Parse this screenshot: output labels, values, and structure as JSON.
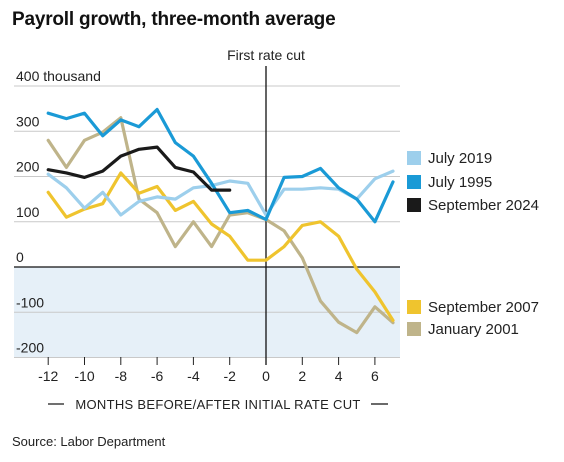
{
  "title": "Payroll growth, three-month average",
  "source": "Source: Labor Department",
  "chart_data": {
    "type": "line",
    "title": "Payroll growth, three-month average",
    "xlabel": "MONTHS BEFORE/AFTER INITIAL RATE CUT",
    "ylabel_unit": "thousand",
    "xlim": [
      -12,
      7
    ],
    "ylim": [
      -200,
      400
    ],
    "x_ticks": [
      -12,
      -10,
      -8,
      -6,
      -4,
      -2,
      0,
      2,
      4,
      6
    ],
    "y_ticks": [
      {
        "value": 400,
        "label": "400 thousand"
      },
      {
        "value": 300,
        "label": "300"
      },
      {
        "value": 200,
        "label": "200"
      },
      {
        "value": 100,
        "label": "100"
      },
      {
        "value": 0,
        "label": "0"
      },
      {
        "value": -100,
        "label": "-100"
      },
      {
        "value": -200,
        "label": "-200"
      }
    ],
    "annotation": "First rate cut",
    "annotation_x": 0,
    "negative_shading": true,
    "series": [
      {
        "name": "July 2019",
        "color": "#9dcfec",
        "x": [
          -12,
          -11,
          -10,
          -9,
          -8,
          -7,
          -6,
          -5,
          -4,
          -3,
          -2,
          -1,
          0,
          1,
          2,
          3,
          4,
          5,
          6,
          7
        ],
        "y": [
          205,
          175,
          130,
          165,
          115,
          145,
          155,
          150,
          175,
          180,
          190,
          185,
          115,
          172,
          172,
          175,
          172,
          150,
          195,
          212
        ]
      },
      {
        "name": "July 1995",
        "color": "#1a9ad6",
        "x": [
          -12,
          -11,
          -10,
          -9,
          -8,
          -7,
          -6,
          -5,
          -4,
          -3,
          -2,
          -1,
          0,
          1,
          2,
          3,
          4,
          5,
          6,
          7
        ],
        "y": [
          340,
          328,
          340,
          290,
          325,
          310,
          348,
          275,
          245,
          185,
          120,
          125,
          105,
          198,
          200,
          218,
          175,
          150,
          100,
          188
        ]
      },
      {
        "name": "September 2024",
        "color": "#1a1a1a",
        "x": [
          -12,
          -11,
          -10,
          -9,
          -8,
          -7,
          -6,
          -5,
          -4,
          -3,
          -2
        ],
        "y": [
          215,
          208,
          198,
          212,
          245,
          260,
          265,
          220,
          210,
          170,
          170
        ]
      },
      {
        "name": "September 2007",
        "color": "#efc42e",
        "x": [
          -12,
          -11,
          -10,
          -9,
          -8,
          -7,
          -6,
          -5,
          -4,
          -3,
          -2,
          -1,
          0,
          1,
          2,
          3,
          4,
          5,
          6,
          7
        ],
        "y": [
          165,
          110,
          128,
          140,
          208,
          163,
          178,
          125,
          145,
          95,
          68,
          15,
          15,
          45,
          92,
          100,
          68,
          -5,
          -55,
          -118
        ]
      },
      {
        "name": "January 2001",
        "color": "#bfb48a",
        "x": [
          -12,
          -11,
          -10,
          -9,
          -8,
          -7,
          -6,
          -5,
          -4,
          -3,
          -2,
          -1,
          0,
          1,
          2,
          3,
          4,
          5,
          6,
          7
        ],
        "y": [
          280,
          220,
          280,
          298,
          330,
          150,
          120,
          45,
          100,
          45,
          115,
          120,
          105,
          80,
          20,
          -75,
          -122,
          -145,
          -88,
          -123
        ]
      }
    ]
  }
}
